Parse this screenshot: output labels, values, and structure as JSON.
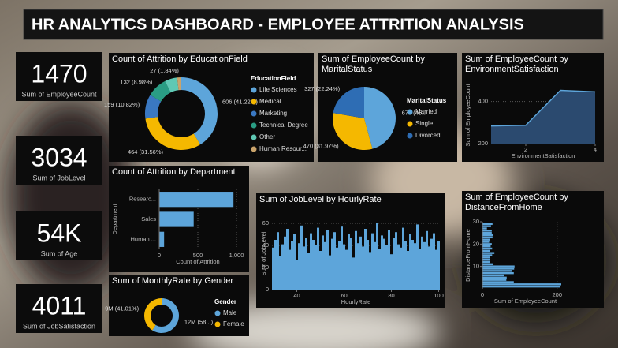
{
  "title": "HR ANALYTICS DASHBOARD - EMPLOYEE ATTRITION ANALYSIS",
  "cards": [
    {
      "value": 1470,
      "caption": "Sum of EmployeeCount"
    },
    {
      "value": 3034,
      "caption": "Sum of JobLevel"
    },
    {
      "value": 54000,
      "value_label": "54K",
      "caption": "Sum of Age"
    },
    {
      "value": 4011,
      "caption": "Sum of JobSatisfaction"
    }
  ],
  "chart_data": [
    {
      "type": "donut",
      "title": "Count of Attrition by EducationField",
      "legend_title": "EducationField",
      "categories": [
        "Life Sciences",
        "Medical",
        "Marketing",
        "Technical Degree",
        "Other",
        "Human Resour..."
      ],
      "values": [
        606,
        464,
        159,
        132,
        82,
        27
      ],
      "value_labels": [
        "606 (41.22%)",
        "464 (31.56%)",
        "159 (10.82%)",
        "132 (8.98%)",
        null,
        "27 (1.84%)"
      ],
      "colors": [
        "#5da5da",
        "#f5b800",
        "#3a78c2",
        "#2a9d84",
        "#5fc8b4",
        "#c9a36b"
      ]
    },
    {
      "type": "pie",
      "title": "Sum of EmployeeCount by MaritalStatus",
      "legend_title": "MaritalStatus",
      "categories": [
        "Married",
        "Single",
        "Divorced"
      ],
      "values": [
        673,
        470,
        327
      ],
      "value_labels": [
        "673 (45...",
        "470 (31.97%)",
        "327 (22.24%)"
      ],
      "colors": [
        "#5da5da",
        "#f5b800",
        "#2e6db4"
      ]
    },
    {
      "type": "area",
      "title": "Sum of EmployeeCount by EnvironmentSatisfaction",
      "x": [
        1,
        2,
        3,
        4
      ],
      "values": [
        284,
        287,
        453,
        446
      ],
      "xlim": [
        1,
        4
      ],
      "xticks": [
        2,
        4
      ],
      "ylim": [
        200,
        470
      ],
      "yticks": [
        200,
        400
      ],
      "x_label": "EnvironmentSatisfaction",
      "y_label": "Sum of EmployeeCount",
      "color": "#5da5da",
      "fill": "#2b4a6f",
      "grid": true
    },
    {
      "type": "bar",
      "orientation": "horizontal",
      "title": "Count of Attrition by Department",
      "categories": [
        "Researc...",
        "Sales",
        "Human ..."
      ],
      "values": [
        961,
        446,
        63
      ],
      "xlim": [
        0,
        1000
      ],
      "xticks": [
        0,
        500,
        {
          "value": 1000,
          "label": "1,000"
        }
      ],
      "x_label": "Count of Attrition",
      "y_label": "Department",
      "color": "#5da5da",
      "grid": true
    },
    {
      "type": "donut",
      "title": "Sum of MonthlyRate by Gender",
      "legend_title": "Gender",
      "categories": [
        "Male",
        "Female"
      ],
      "values": [
        12.39,
        8.62
      ],
      "value_labels": [
        "12M (58...)",
        "9M (41.01%)"
      ],
      "colors": [
        "#5da5da",
        "#f5b800"
      ]
    },
    {
      "type": "bar",
      "orientation": "vertical",
      "title": "Sum of JobLevel by HourlyRate",
      "x": [
        30,
        31,
        32,
        33,
        34,
        35,
        36,
        37,
        38,
        39,
        40,
        41,
        42,
        43,
        44,
        45,
        46,
        47,
        48,
        49,
        50,
        51,
        52,
        53,
        54,
        55,
        56,
        57,
        58,
        59,
        60,
        61,
        62,
        63,
        64,
        65,
        66,
        67,
        68,
        69,
        70,
        71,
        72,
        73,
        74,
        75,
        76,
        77,
        78,
        79,
        80,
        81,
        82,
        83,
        84,
        85,
        86,
        87,
        88,
        89,
        90,
        91,
        92,
        93,
        94,
        95,
        96,
        97,
        98,
        99,
        100
      ],
      "values": [
        38,
        45,
        52,
        30,
        41,
        48,
        55,
        36,
        44,
        50,
        27,
        42,
        58,
        39,
        47,
        33,
        51,
        45,
        40,
        56,
        35,
        49,
        43,
        54,
        31,
        46,
        52,
        38,
        44,
        57,
        41,
        36,
        50,
        47,
        29,
        53,
        42,
        48,
        39,
        55,
        45,
        34,
        51,
        43,
        60,
        37,
        49,
        46,
        40,
        54,
        32,
        47,
        52,
        41,
        38,
        56,
        44,
        35,
        50,
        45,
        42,
        59,
        37,
        48,
        43,
        53,
        39,
        46,
        51,
        36,
        44
      ],
      "xlim": [
        29.5,
        100.5
      ],
      "xticks": [
        40,
        60,
        80,
        100
      ],
      "ylim": [
        0,
        65
      ],
      "yticks": [
        0,
        20,
        40,
        60
      ],
      "x_label": "HourlyRate",
      "y_label": "Sum of JobLevel",
      "color": "#5da5da",
      "grid": true
    },
    {
      "type": "bar",
      "orientation": "horizontal",
      "title": "Sum of EmployeeCount by DistanceFromHome",
      "y": [
        1,
        2,
        3,
        4,
        5,
        6,
        7,
        8,
        9,
        10,
        11,
        12,
        13,
        14,
        15,
        16,
        17,
        18,
        19,
        20,
        21,
        22,
        23,
        24,
        25,
        26,
        27,
        28,
        29
      ],
      "values": [
        208,
        211,
        84,
        64,
        65,
        59,
        84,
        80,
        85,
        86,
        29,
        20,
        19,
        21,
        26,
        32,
        20,
        26,
        22,
        25,
        18,
        19,
        27,
        28,
        25,
        25,
        12,
        23,
        27
      ],
      "xlim": [
        0,
        230
      ],
      "xticks": [
        0,
        200
      ],
      "ylim": [
        0,
        30
      ],
      "yticks": [
        10,
        20,
        30
      ],
      "x_label": "Sum of EmployeeCount",
      "y_label": "DistanceFromHome",
      "color": "#5da5da",
      "grid": true
    }
  ]
}
